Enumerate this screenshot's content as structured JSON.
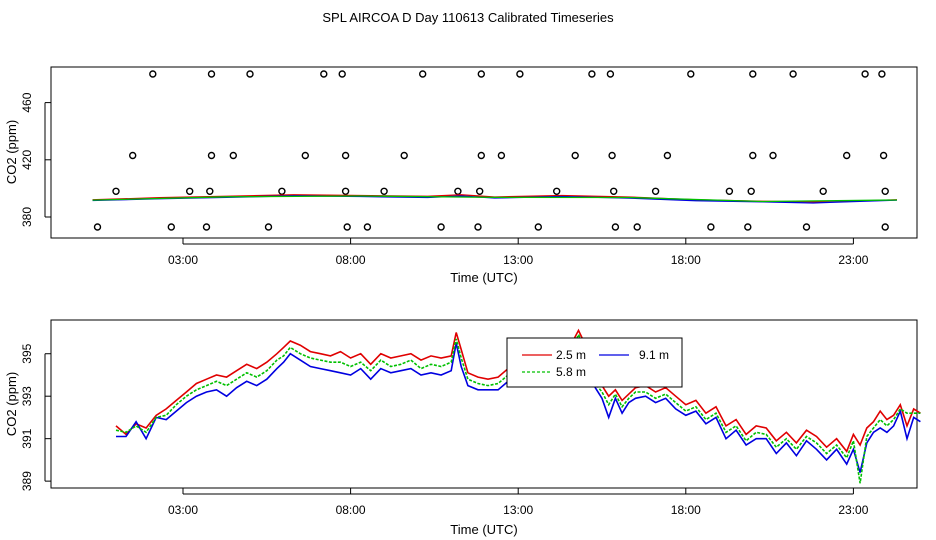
{
  "title": "SPL AIRCOA D  Day 110613  Calibrated Timeseries",
  "colors": {
    "red": "#e00000",
    "green": "#00c000",
    "blue": "#0000e0",
    "marker": "#000000"
  },
  "chart_data": [
    {
      "type": "scatter",
      "xlabel": "Time (UTC)",
      "ylabel": "CO2 (ppm)",
      "xlim": [
        0,
        25
      ],
      "ylim": [
        370,
        480
      ],
      "x_ticks": [
        3,
        8,
        13,
        18,
        23
      ],
      "x_tick_labels": [
        "03:00",
        "08:00",
        "13:00",
        "18:00",
        "23:00"
      ],
      "y_ticks": [
        380,
        420,
        460
      ],
      "y_tick_labels": [
        "380",
        "420",
        "460"
      ],
      "grid": false,
      "series": [
        {
          "kind": "points",
          "color": "#000000",
          "points": [
            [
              2.1,
              480
            ],
            [
              3.85,
              480
            ],
            [
              5.0,
              480
            ],
            [
              7.2,
              480
            ],
            [
              7.75,
              480
            ],
            [
              10.15,
              480
            ],
            [
              11.9,
              480
            ],
            [
              13.05,
              480
            ],
            [
              15.2,
              480
            ],
            [
              15.75,
              480
            ],
            [
              18.15,
              480
            ],
            [
              20.0,
              480
            ],
            [
              21.2,
              480
            ],
            [
              23.35,
              480
            ],
            [
              23.85,
              480
            ],
            [
              1.5,
              423
            ],
            [
              3.85,
              423
            ],
            [
              4.5,
              423
            ],
            [
              6.65,
              423
            ],
            [
              7.85,
              423
            ],
            [
              9.6,
              423
            ],
            [
              11.9,
              423
            ],
            [
              12.5,
              423
            ],
            [
              14.7,
              423
            ],
            [
              15.8,
              423
            ],
            [
              17.45,
              423
            ],
            [
              20.0,
              423
            ],
            [
              20.6,
              423
            ],
            [
              22.8,
              423
            ],
            [
              23.9,
              423
            ],
            [
              1.0,
              398
            ],
            [
              3.2,
              398
            ],
            [
              3.8,
              398
            ],
            [
              5.95,
              398
            ],
            [
              7.85,
              398
            ],
            [
              9.0,
              398
            ],
            [
              11.2,
              398
            ],
            [
              11.85,
              398
            ],
            [
              14.15,
              398
            ],
            [
              15.85,
              398
            ],
            [
              17.1,
              398
            ],
            [
              19.3,
              398
            ],
            [
              19.95,
              398
            ],
            [
              22.1,
              398
            ],
            [
              23.95,
              398
            ],
            [
              0.45,
              373
            ],
            [
              2.65,
              373
            ],
            [
              3.7,
              373
            ],
            [
              5.55,
              373
            ],
            [
              7.9,
              373
            ],
            [
              8.5,
              373
            ],
            [
              10.7,
              373
            ],
            [
              11.8,
              373
            ],
            [
              13.6,
              373
            ],
            [
              15.9,
              373
            ],
            [
              16.55,
              373
            ],
            [
              18.75,
              373
            ],
            [
              19.85,
              373
            ],
            [
              21.6,
              373
            ],
            [
              23.95,
              373
            ]
          ]
        },
        {
          "kind": "line",
          "color": "#e00000",
          "points": [
            [
              0,
              392
            ],
            [
              2,
              393.5
            ],
            [
              4,
              394.5
            ],
            [
              6,
              395.5
            ],
            [
              8,
              395
            ],
            [
              10,
              394.5
            ],
            [
              11,
              395.5
            ],
            [
              12,
              394
            ],
            [
              14,
              395
            ],
            [
              16,
              394
            ],
            [
              18,
              392
            ],
            [
              20,
              391
            ],
            [
              22,
              390.5
            ],
            [
              24,
              392
            ]
          ]
        },
        {
          "kind": "line",
          "color": "#0000e0",
          "points": [
            [
              0,
              391.5
            ],
            [
              2,
              392.8
            ],
            [
              4,
              393.8
            ],
            [
              6,
              394.8
            ],
            [
              8,
              394.3
            ],
            [
              10,
              393.6
            ],
            [
              11,
              394.7
            ],
            [
              12,
              393.3
            ],
            [
              14,
              394.3
            ],
            [
              16,
              393.2
            ],
            [
              18,
              391.4
            ],
            [
              20,
              390.6
            ],
            [
              21.5,
              389.8
            ],
            [
              22,
              390.2
            ],
            [
              24,
              391.8
            ]
          ]
        },
        {
          "kind": "line",
          "color": "#00c000",
          "points": [
            [
              0,
              391.8
            ],
            [
              4,
              394.1
            ],
            [
              8,
              394.7
            ],
            [
              12,
              393.7
            ],
            [
              16,
              393.6
            ],
            [
              20,
              390.8
            ],
            [
              24,
              391.9
            ]
          ]
        }
      ]
    },
    {
      "type": "line",
      "xlabel": "Time (UTC)",
      "ylabel": "CO2 (ppm)",
      "xlim": [
        0,
        25
      ],
      "ylim": [
        388.5,
        396.2
      ],
      "x_ticks": [
        3,
        8,
        13,
        18,
        23
      ],
      "x_tick_labels": [
        "03:00",
        "08:00",
        "13:00",
        "18:00",
        "23:00"
      ],
      "y_ticks": [
        389,
        391,
        393,
        395
      ],
      "y_tick_labels": [
        "389",
        "391",
        "393",
        "395"
      ],
      "grid": false,
      "legend": {
        "placement": "top-center",
        "entries": [
          {
            "label": "2.5 m",
            "color": "#e00000",
            "dashed": false
          },
          {
            "label": "9.1 m",
            "color": "#0000e0",
            "dashed": false
          },
          {
            "label": "5.8 m",
            "color": "#00c000",
            "dashed": true
          }
        ]
      },
      "series": [
        {
          "name": "2.5 m",
          "color": "#e00000",
          "x": [
            0.0,
            0.3,
            0.6,
            0.9,
            1.2,
            1.5,
            1.8,
            2.1,
            2.4,
            2.7,
            3.0,
            3.3,
            3.6,
            3.9,
            4.2,
            4.5,
            4.8,
            5.0,
            5.2,
            5.5,
            5.8,
            6.1,
            6.4,
            6.7,
            7.0,
            7.3,
            7.6,
            7.9,
            8.2,
            8.5,
            8.8,
            9.1,
            9.4,
            9.7,
            10.0,
            10.15,
            10.3,
            10.5,
            10.8,
            11.1,
            11.4,
            11.7,
            12.0,
            12.2,
            12.4,
            12.6,
            12.8,
            13.0,
            13.2,
            13.4,
            13.6,
            13.8,
            13.95,
            14.1,
            14.3,
            14.5,
            14.7,
            14.9,
            15.1,
            15.3,
            15.5,
            15.8,
            16.1,
            16.4,
            16.7,
            17.0,
            17.3,
            17.6,
            17.9,
            18.2,
            18.5,
            18.8,
            19.1,
            19.4,
            19.7,
            20.0,
            20.3,
            20.6,
            20.9,
            21.2,
            21.5,
            21.8,
            22.0,
            22.2,
            22.4,
            22.6,
            22.8,
            23.0,
            23.2,
            23.4,
            23.6,
            23.8,
            24.0
          ],
          "values": [
            391.6,
            391.2,
            391.7,
            391.5,
            392.1,
            392.4,
            392.8,
            393.2,
            393.6,
            393.8,
            394.0,
            393.9,
            394.2,
            394.5,
            394.3,
            394.6,
            395.0,
            395.3,
            395.6,
            395.4,
            395.1,
            395.0,
            394.9,
            395.1,
            394.8,
            395.0,
            394.5,
            395.0,
            394.8,
            394.9,
            395.0,
            394.7,
            394.9,
            394.8,
            394.9,
            396.0,
            395.2,
            394.1,
            393.9,
            393.8,
            393.9,
            394.3,
            394.9,
            394.8,
            394.5,
            394.6,
            394.2,
            394.5,
            393.9,
            394.9,
            395.5,
            396.1,
            395.6,
            394.6,
            393.8,
            393.5,
            393.0,
            393.3,
            392.8,
            393.1,
            393.4,
            393.5,
            393.2,
            393.4,
            393.0,
            392.6,
            392.8,
            392.2,
            392.5,
            391.6,
            391.9,
            391.2,
            391.6,
            391.5,
            390.9,
            391.3,
            390.8,
            391.4,
            391.1,
            390.6,
            391.0,
            390.4,
            391.2,
            390.7,
            391.5,
            391.8,
            392.3,
            391.9,
            392.1,
            392.6,
            391.6,
            392.4,
            392.2
          ]
        },
        {
          "name": "9.1 m",
          "color": "#0000e0",
          "x": [
            0.0,
            0.3,
            0.6,
            0.9,
            1.2,
            1.5,
            1.8,
            2.1,
            2.4,
            2.7,
            3.0,
            3.3,
            3.6,
            3.9,
            4.2,
            4.5,
            4.8,
            5.0,
            5.2,
            5.5,
            5.8,
            6.1,
            6.4,
            6.7,
            7.0,
            7.3,
            7.6,
            7.9,
            8.2,
            8.5,
            8.8,
            9.1,
            9.4,
            9.7,
            10.0,
            10.15,
            10.3,
            10.5,
            10.8,
            11.1,
            11.4,
            11.7,
            12.0,
            12.2,
            12.4,
            12.6,
            12.8,
            13.0,
            13.2,
            13.4,
            13.6,
            13.8,
            13.95,
            14.1,
            14.3,
            14.5,
            14.7,
            14.9,
            15.1,
            15.3,
            15.5,
            15.8,
            16.1,
            16.4,
            16.7,
            17.0,
            17.3,
            17.6,
            17.9,
            18.2,
            18.5,
            18.8,
            19.1,
            19.4,
            19.7,
            20.0,
            20.3,
            20.6,
            20.9,
            21.2,
            21.5,
            21.8,
            22.0,
            22.2,
            22.4,
            22.6,
            22.8,
            23.0,
            23.2,
            23.4,
            23.6,
            23.8,
            24.0
          ],
          "values": [
            391.1,
            391.1,
            391.8,
            391.0,
            392.0,
            391.9,
            392.3,
            392.7,
            393.0,
            393.2,
            393.3,
            393.0,
            393.4,
            393.7,
            393.5,
            393.8,
            394.3,
            394.6,
            395.0,
            394.7,
            394.4,
            394.3,
            394.2,
            394.1,
            394.0,
            394.3,
            393.8,
            394.3,
            394.1,
            394.2,
            394.3,
            394.0,
            394.1,
            394.0,
            394.2,
            395.5,
            394.4,
            393.5,
            393.3,
            393.3,
            393.3,
            393.7,
            394.3,
            394.2,
            394.0,
            394.1,
            393.7,
            394.0,
            393.5,
            394.4,
            395.0,
            395.7,
            395.2,
            394.2,
            393.4,
            392.9,
            392.0,
            392.9,
            392.2,
            392.7,
            392.9,
            393.0,
            392.7,
            392.9,
            392.4,
            392.1,
            392.3,
            391.7,
            392.0,
            391.0,
            391.4,
            390.7,
            391.0,
            391.0,
            390.3,
            390.8,
            390.2,
            390.9,
            390.5,
            390.0,
            390.5,
            389.8,
            390.5,
            389.4,
            390.8,
            391.3,
            391.5,
            391.3,
            391.6,
            392.3,
            391.0,
            392.0,
            391.8
          ]
        },
        {
          "name": "5.8 m",
          "color": "#00c000",
          "x": [
            0.0,
            0.3,
            0.6,
            0.9,
            1.2,
            1.5,
            1.8,
            2.1,
            2.4,
            2.7,
            3.0,
            3.3,
            3.6,
            3.9,
            4.2,
            4.5,
            4.8,
            5.0,
            5.2,
            5.5,
            5.8,
            6.1,
            6.4,
            6.7,
            7.0,
            7.3,
            7.6,
            7.9,
            8.2,
            8.5,
            8.8,
            9.1,
            9.4,
            9.7,
            10.0,
            10.15,
            10.3,
            10.5,
            10.8,
            11.1,
            11.4,
            11.7,
            12.0,
            12.2,
            12.4,
            12.6,
            12.8,
            13.0,
            13.2,
            13.4,
            13.6,
            13.8,
            13.95,
            14.1,
            14.3,
            14.5,
            14.7,
            14.9,
            15.1,
            15.3,
            15.5,
            15.8,
            16.1,
            16.4,
            16.7,
            17.0,
            17.3,
            17.6,
            17.9,
            18.2,
            18.5,
            18.8,
            19.1,
            19.4,
            19.7,
            20.0,
            20.3,
            20.6,
            20.9,
            21.2,
            21.5,
            21.8,
            22.0,
            22.2,
            22.4,
            22.6,
            22.8,
            23.0,
            23.2,
            23.4,
            23.6,
            23.8,
            24.0
          ],
          "values": [
            391.4,
            391.3,
            391.6,
            391.3,
            392.0,
            392.1,
            392.6,
            393.0,
            393.3,
            393.5,
            393.7,
            393.5,
            393.8,
            394.1,
            393.9,
            394.2,
            394.7,
            394.9,
            395.3,
            395.0,
            394.8,
            394.7,
            394.6,
            394.6,
            394.4,
            394.6,
            394.2,
            394.7,
            394.4,
            394.5,
            394.7,
            394.3,
            394.5,
            394.4,
            394.6,
            395.7,
            394.8,
            393.8,
            393.6,
            393.5,
            393.6,
            394.0,
            394.6,
            394.5,
            394.2,
            394.3,
            393.9,
            394.2,
            393.7,
            394.6,
            395.2,
            395.9,
            395.4,
            394.4,
            393.6,
            393.2,
            392.6,
            393.1,
            392.5,
            392.9,
            393.2,
            393.2,
            392.9,
            393.1,
            392.7,
            392.3,
            392.5,
            391.9,
            392.2,
            391.3,
            391.6,
            390.9,
            391.3,
            391.2,
            390.6,
            391.0,
            390.5,
            391.1,
            390.8,
            390.3,
            390.7,
            390.1,
            390.9,
            388.9,
            391.1,
            391.5,
            391.9,
            391.6,
            391.9,
            392.4,
            392.2,
            392.2,
            392.2
          ]
        }
      ]
    }
  ]
}
